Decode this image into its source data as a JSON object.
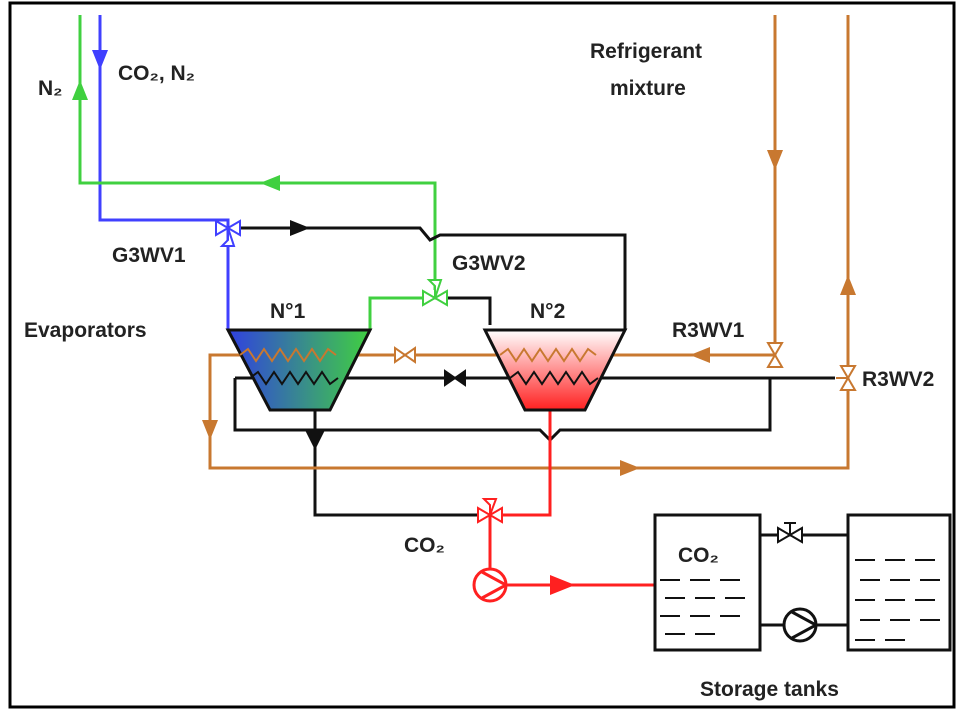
{
  "labels": {
    "n2_in": "N₂",
    "co2_n2": "CO₂, N₂",
    "refrigerant_1": "Refrigerant",
    "refrigerant_2": "mixture",
    "g3wv1": "G3WV1",
    "g3wv2": "G3WV2",
    "evap1": "N°1",
    "evap2": "N°2",
    "evaporators": "Evaporators",
    "r3wv1": "R3WV1",
    "r3wv2": "R3WV2",
    "co2_valve": "CO₂",
    "co2_tank": "CO₂",
    "storage": "Storage tanks"
  }
}
